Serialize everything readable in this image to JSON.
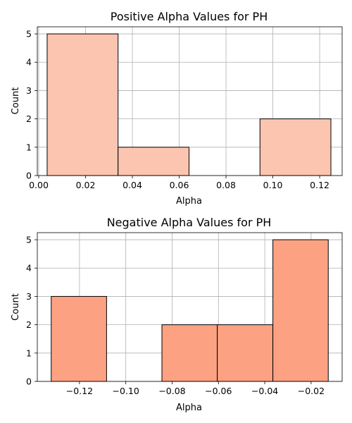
{
  "chart_data": [
    {
      "type": "bar",
      "title": "Positive Alpha Values for PH",
      "xlabel": "Alpha",
      "ylabel": "Count",
      "xlim": [
        -0.0006,
        0.1296
      ],
      "ylim": [
        0,
        5.25
      ],
      "xticks": [
        0.0,
        0.02,
        0.04,
        0.06,
        0.08,
        0.1,
        0.12
      ],
      "xtick_labels": [
        "0.00",
        "0.02",
        "0.04",
        "0.06",
        "0.08",
        "0.10",
        "0.12"
      ],
      "yticks": [
        0,
        1,
        2,
        3,
        4,
        5
      ],
      "ytick_labels": [
        "0",
        "1",
        "2",
        "3",
        "4",
        "5"
      ],
      "grid": true,
      "color": "#fcc5b0",
      "bins": [
        {
          "x0": 0.0036,
          "x1": 0.0339,
          "count": 5
        },
        {
          "x0": 0.0339,
          "x1": 0.0642,
          "count": 1
        },
        {
          "x0": 0.0642,
          "x1": 0.0945,
          "count": 0
        },
        {
          "x0": 0.0945,
          "x1": 0.1248,
          "count": 2
        }
      ]
    },
    {
      "type": "bar",
      "title": "Negative Alpha Values for PH",
      "xlabel": "Alpha",
      "ylabel": "Count",
      "xlim": [
        -0.1382,
        -0.0066
      ],
      "ylim": [
        0,
        5.25
      ],
      "xticks": [
        -0.12,
        -0.1,
        -0.08,
        -0.06,
        -0.04,
        -0.02
      ],
      "xtick_labels": [
        "−0.12",
        "−0.10",
        "−0.08",
        "−0.06",
        "−0.04",
        "−0.02"
      ],
      "yticks": [
        0,
        1,
        2,
        3,
        4,
        5
      ],
      "ytick_labels": [
        "0",
        "1",
        "2",
        "3",
        "4",
        "5"
      ],
      "grid": true,
      "color": "#fca282",
      "bins": [
        {
          "x0": -0.1322,
          "x1": -0.1083,
          "count": 3
        },
        {
          "x0": -0.1083,
          "x1": -0.0844,
          "count": 0
        },
        {
          "x0": -0.0844,
          "x1": -0.0605,
          "count": 2
        },
        {
          "x0": -0.0605,
          "x1": -0.0365,
          "count": 2
        },
        {
          "x0": -0.0365,
          "x1": -0.0126,
          "count": 5
        }
      ]
    }
  ]
}
